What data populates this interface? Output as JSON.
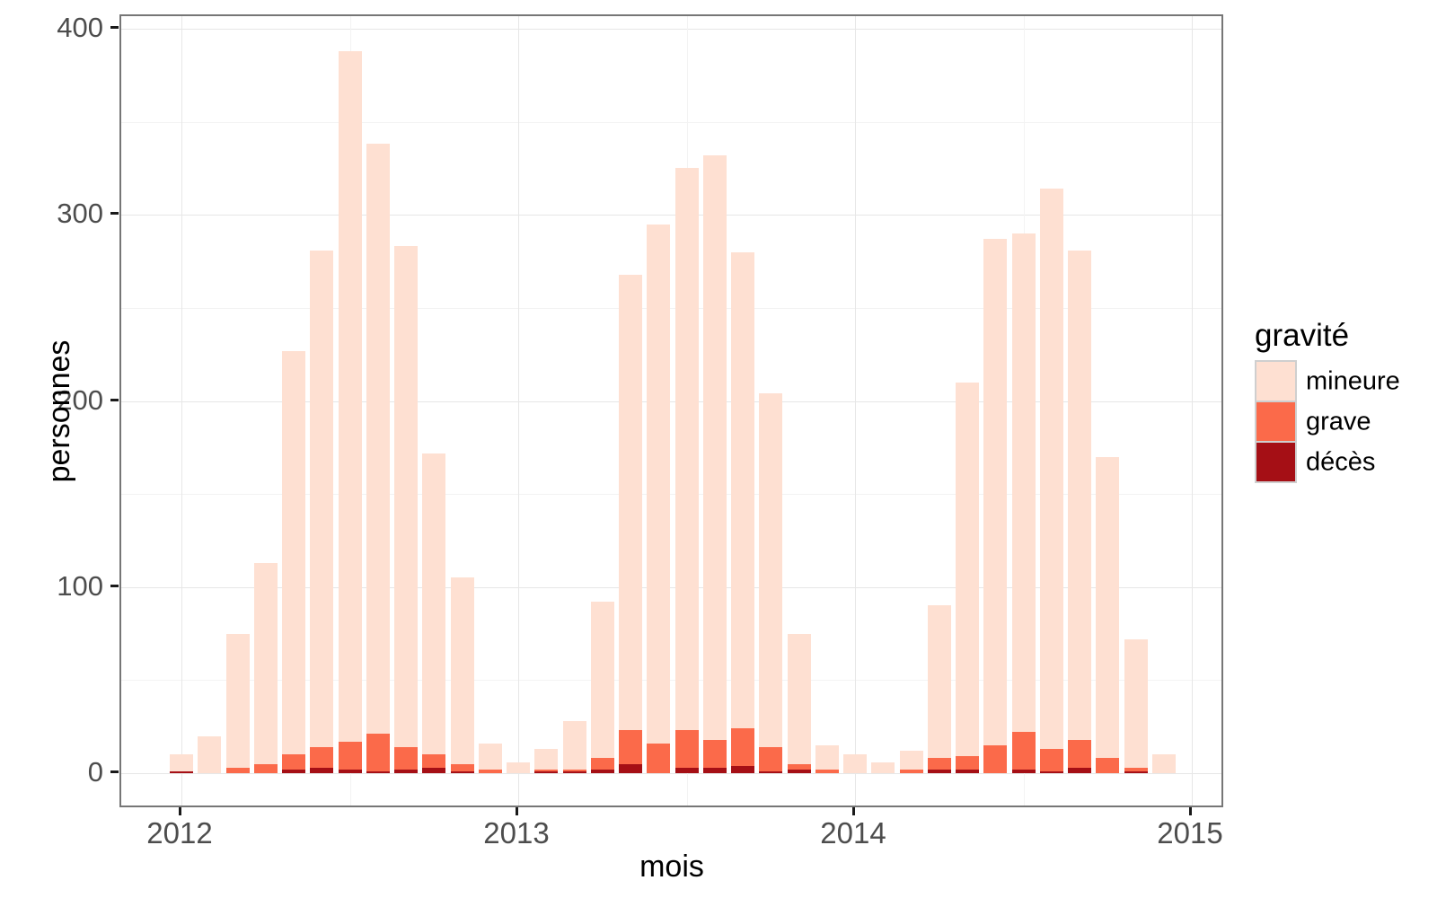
{
  "chart_data": {
    "type": "bar",
    "stacked": true,
    "xlabel": "mois",
    "ylabel": "personnes",
    "ylim": [
      0,
      400
    ],
    "y_ticks": [
      0,
      100,
      200,
      300,
      400
    ],
    "y_minor_gridlines": [
      50,
      150,
      250,
      350
    ],
    "x_ticks": [
      "2012",
      "2013",
      "2014",
      "2015"
    ],
    "x_tick_month_index": [
      0,
      12,
      24,
      36
    ],
    "x_minor_month_index": [
      6,
      18,
      30
    ],
    "grid": true,
    "months": [
      "2012-01",
      "2012-02",
      "2012-03",
      "2012-04",
      "2012-05",
      "2012-06",
      "2012-07",
      "2012-08",
      "2012-09",
      "2012-10",
      "2012-11",
      "2012-12",
      "2013-01",
      "2013-02",
      "2013-03",
      "2013-04",
      "2013-05",
      "2013-06",
      "2013-07",
      "2013-08",
      "2013-09",
      "2013-10",
      "2013-11",
      "2013-12",
      "2014-01",
      "2014-02",
      "2014-03",
      "2014-04",
      "2014-05",
      "2014-06",
      "2014-07",
      "2014-08",
      "2014-09",
      "2014-10",
      "2014-11",
      "2014-12"
    ],
    "stack_order_bottom_to_top": [
      "décès",
      "grave",
      "mineure"
    ],
    "series": [
      {
        "name": "mineure",
        "color": "#fee0d2",
        "values": [
          9,
          20,
          72,
          108,
          217,
          267,
          371,
          317,
          269,
          162,
          100,
          14,
          6,
          11,
          26,
          84,
          245,
          279,
          302,
          314,
          256,
          190,
          70,
          13,
          10,
          6,
          10,
          82,
          201,
          272,
          268,
          301,
          263,
          162,
          69,
          10
        ]
      },
      {
        "name": "grave",
        "color": "#fb6a4a",
        "values": [
          0,
          0,
          3,
          5,
          8,
          11,
          15,
          20,
          12,
          7,
          4,
          2,
          0,
          1,
          1,
          6,
          18,
          16,
          20,
          15,
          20,
          13,
          3,
          2,
          0,
          0,
          2,
          6,
          7,
          15,
          20,
          12,
          15,
          8,
          2,
          0
        ]
      },
      {
        "name": "décès",
        "color": "#a50f15",
        "values": [
          1,
          0,
          0,
          0,
          2,
          3,
          2,
          1,
          2,
          3,
          1,
          0,
          0,
          1,
          1,
          2,
          5,
          0,
          3,
          3,
          4,
          1,
          2,
          0,
          0,
          0,
          0,
          2,
          2,
          0,
          2,
          1,
          3,
          0,
          1,
          0
        ]
      }
    ],
    "legend": {
      "title": "gravité",
      "position": "right",
      "entries": [
        {
          "label": "mineure",
          "color": "#fee0d2"
        },
        {
          "label": "grave",
          "color": "#fb6a4a"
        },
        {
          "label": "décès",
          "color": "#a50f15"
        }
      ]
    }
  }
}
